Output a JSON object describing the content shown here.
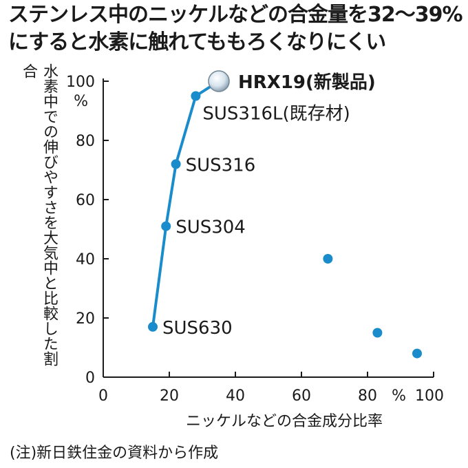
{
  "chart_data": {
    "type": "scatter",
    "title_lines": [
      "ステンレス中のニッケルなどの合金量を32～39%",
      "にすると水素に触れてももろくなりにくい"
    ],
    "ylabel": "水素中での伸びやすさを大気中と比較した割合",
    "y_unit": "%",
    "x_unit": "%",
    "xlabel": "ニッケルなどの合金成分比率",
    "xlim": [
      0,
      100
    ],
    "ylim": [
      0,
      100
    ],
    "x_ticks": [
      "0",
      "20",
      "40",
      "60",
      "80",
      "100"
    ],
    "y_ticks": [
      "0",
      "20",
      "40",
      "60",
      "80",
      "100"
    ],
    "grid": false,
    "line_series": {
      "color": "#1a8ccc",
      "points": [
        {
          "x": 15,
          "y": 17,
          "label": "SUS630"
        },
        {
          "x": 19,
          "y": 51,
          "label": "SUS304"
        },
        {
          "x": 22,
          "y": 72,
          "label": "SUS316"
        },
        {
          "x": 28,
          "y": 95,
          "label": "SUS316L(既存材)"
        },
        {
          "x": 35,
          "y": 100,
          "label": "HRX19(新製品)",
          "highlight": true
        }
      ]
    },
    "other_points": [
      {
        "x": 68,
        "y": 40
      },
      {
        "x": 83,
        "y": 15
      },
      {
        "x": 95,
        "y": 8
      }
    ]
  },
  "footnote": "(注)新日鉄住金の資料から作成",
  "colors": {
    "accent": "#1a8ccc",
    "text": "#1a1a1a",
    "highlight": "#d7e4ee"
  }
}
